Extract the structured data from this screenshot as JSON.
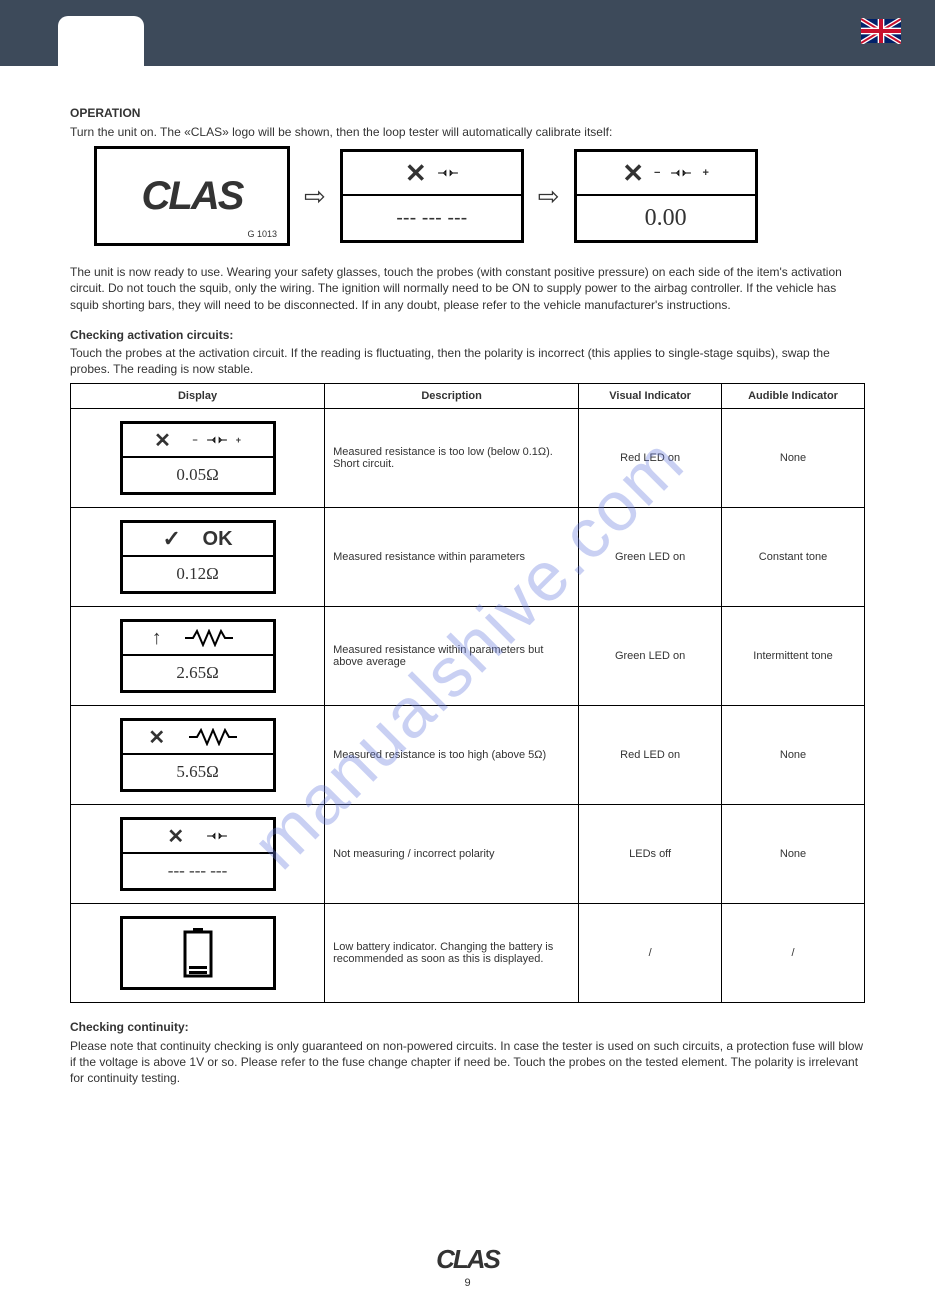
{
  "header": {
    "flag_alt": "UK flag"
  },
  "operation": {
    "title": "OPERATION",
    "p1": "Turn the unit on. The «CLAS» logo will be shown, then the loop tester will automatically calibrate itself:",
    "logo_text": "CLAS",
    "logo_sub": "G 1013",
    "screen2_top_symbol": "X",
    "screen2_bottom": "--- --- ---",
    "screen3_top_symbol": "X",
    "screen3_bottom": "0.00",
    "p2": "The unit is now ready to use. Wearing your safety glasses, touch the probes (with constant positive pressure) on each side of the item's activation circuit. Do not touch the squib, only the wiring. The ignition will normally need to be ON to supply power to the airbag controller. If the vehicle has squib shorting bars, they will need to be disconnected. If in any doubt, please refer to the vehicle manufacturer's instructions.",
    "checking": {
      "title": "Checking activation circuits:",
      "text": "Touch the probes at the activation circuit. If the reading is fluctuating, then the polarity is incorrect (this applies to single-stage squibs), swap the probes. The reading is now stable."
    }
  },
  "table": {
    "headers": {
      "display": "Display",
      "description": "Description",
      "visual": "Visual Indicator",
      "audible": "Audible Indicator"
    },
    "rows": [
      {
        "lcd_top_icon": "x-probe-polar",
        "lcd_bottom": "0.05Ω",
        "description": "Measured resistance is too low (below 0.1Ω). Short circuit.",
        "visual": "Red LED on",
        "audible": "None"
      },
      {
        "lcd_top_icon": "check-ok",
        "lcd_top_text": "OK",
        "lcd_bottom": "0.12Ω",
        "description": "Measured resistance within parameters",
        "visual": "Green LED on",
        "audible": "Constant tone"
      },
      {
        "lcd_top_icon": "up-resistor",
        "lcd_bottom": "2.65Ω",
        "description": "Measured resistance within parameters but above average",
        "visual": "Green LED on",
        "audible": "Intermittent tone"
      },
      {
        "lcd_top_icon": "x-resistor",
        "lcd_bottom": "5.65Ω",
        "description": "Measured resistance is too high (above 5Ω)",
        "visual": "Red LED on",
        "audible": "None"
      },
      {
        "lcd_top_icon": "x-probe",
        "lcd_bottom": "--- --- ---",
        "description": "Not measuring / incorrect polarity",
        "visual": "LEDs off",
        "audible": "None"
      },
      {
        "lcd_top_icon": "battery-low",
        "lcd_bottom": "",
        "description": "Low battery indicator. Changing the battery is recommended as soon as this is displayed.",
        "visual": "/",
        "audible": "/"
      }
    ]
  },
  "checking_continuity": {
    "title": "Checking continuity:",
    "text": "Please note that continuity checking is only guaranteed on non-powered circuits. In case the tester is used on such circuits, a protection fuse will blow if the voltage is above 1V or so. Please refer to the fuse change chapter if need be. Touch the probes on the tested element. The polarity is irrelevant for continuity testing."
  },
  "footer": {
    "logo": "CLAS",
    "page": "9"
  },
  "watermark": "manualshive.com",
  "colors": {
    "topbar": "#3d4a5a",
    "watermark": "rgba(100,120,220,0.35)",
    "flag_red": "#c8102e",
    "flag_blue": "#012169",
    "flag_white": "#ffffff"
  }
}
